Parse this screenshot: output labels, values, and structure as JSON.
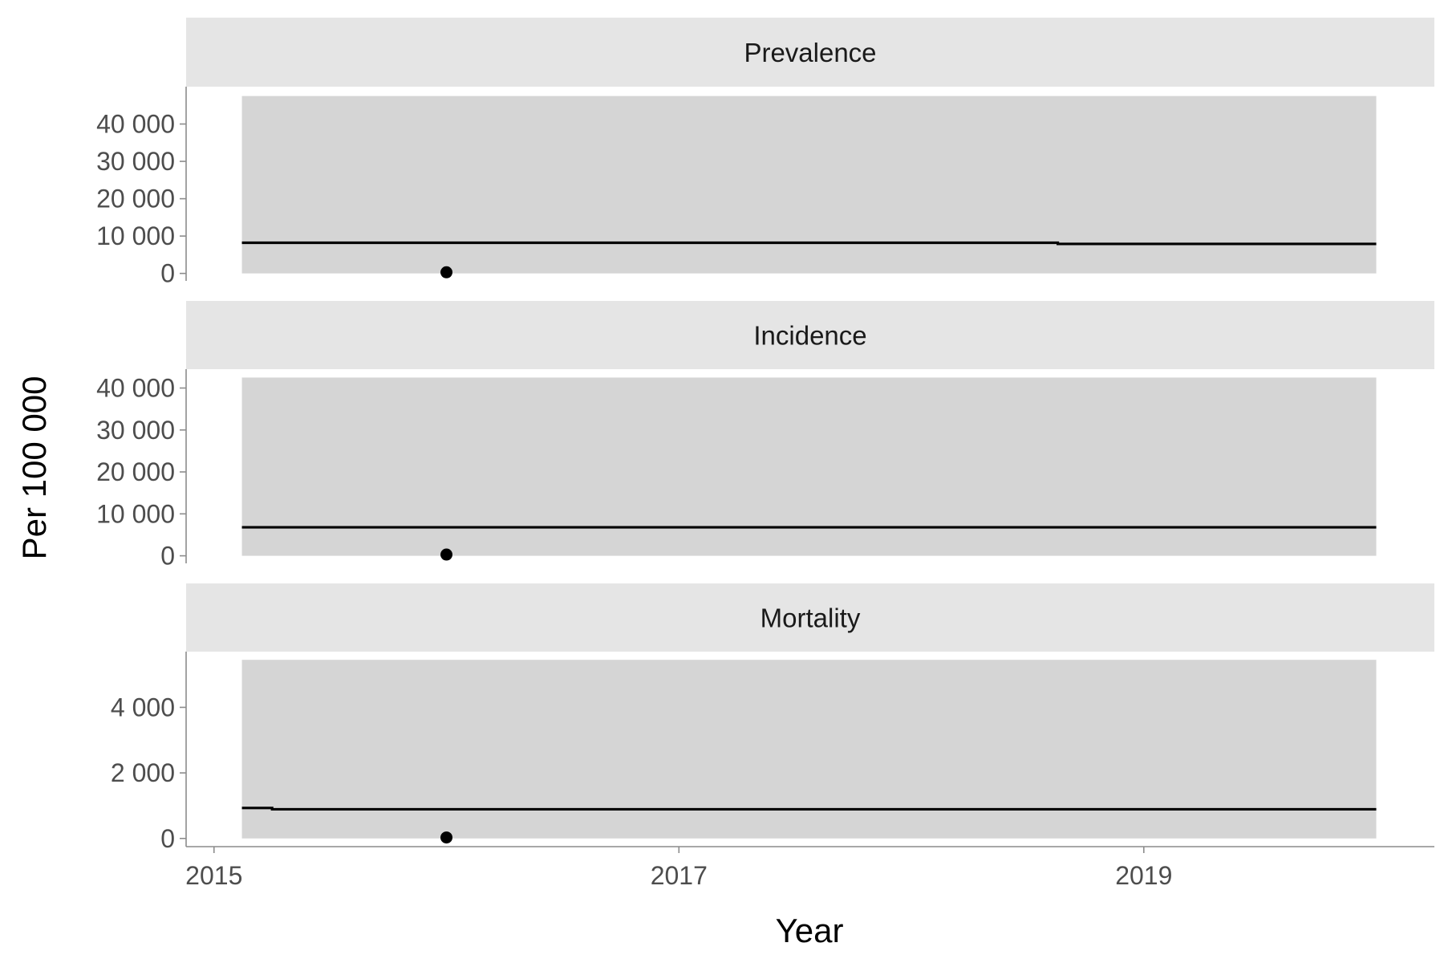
{
  "chart_data": {
    "type": "line",
    "xlabel": "Year",
    "ylabel": "Per 100 000",
    "xlim": [
      2014.88,
      2020.25
    ],
    "xticks": [
      2015,
      2017,
      2019
    ],
    "xtick_labels": [
      "2015",
      "2017",
      "2019"
    ],
    "colors": {
      "strip": "#e5e5e5",
      "band": "#d5d5d5",
      "line": "#000000",
      "point": "#000000",
      "axis": "#8c8c8c",
      "tick_text": "#4d4d4d"
    },
    "panels": [
      {
        "title": "Prevalence",
        "ylim": [
          -2000,
          50000
        ],
        "yticks": [
          0,
          10000,
          20000,
          30000,
          40000
        ],
        "ytick_labels": [
          "0",
          "10 000",
          "20 000",
          "30 000",
          "40 000"
        ],
        "band": {
          "x": [
            2015.12,
            2020.0
          ],
          "lower": 0,
          "upper": 47500
        },
        "line": {
          "x": [
            2015.12,
            2018.63,
            2018.63,
            2020.0
          ],
          "y": [
            8200,
            8200,
            7900,
            7900
          ]
        },
        "point": {
          "x": 2016.0,
          "y": 300
        }
      },
      {
        "title": "Incidence",
        "ylim": [
          -1800,
          44500
        ],
        "yticks": [
          0,
          10000,
          20000,
          30000,
          40000
        ],
        "ytick_labels": [
          "0",
          "10 000",
          "20 000",
          "30 000",
          "40 000"
        ],
        "band": {
          "x": [
            2015.12,
            2020.0
          ],
          "lower": 0,
          "upper": 42500
        },
        "line": {
          "x": [
            2015.12,
            2020.0
          ],
          "y": [
            6800,
            6800
          ]
        },
        "point": {
          "x": 2016.0,
          "y": 300
        }
      },
      {
        "title": "Mortality",
        "ylim": [
          -250,
          5700
        ],
        "yticks": [
          0,
          2000,
          4000
        ],
        "ytick_labels": [
          "0",
          "2 000",
          "4 000"
        ],
        "band": {
          "x": [
            2015.12,
            2020.0
          ],
          "lower": 0,
          "upper": 5450
        },
        "line": {
          "x": [
            2015.12,
            2015.25,
            2015.25,
            2020.0
          ],
          "y": [
            930,
            930,
            890,
            890
          ]
        },
        "point": {
          "x": 2016.0,
          "y": 30
        }
      }
    ]
  }
}
